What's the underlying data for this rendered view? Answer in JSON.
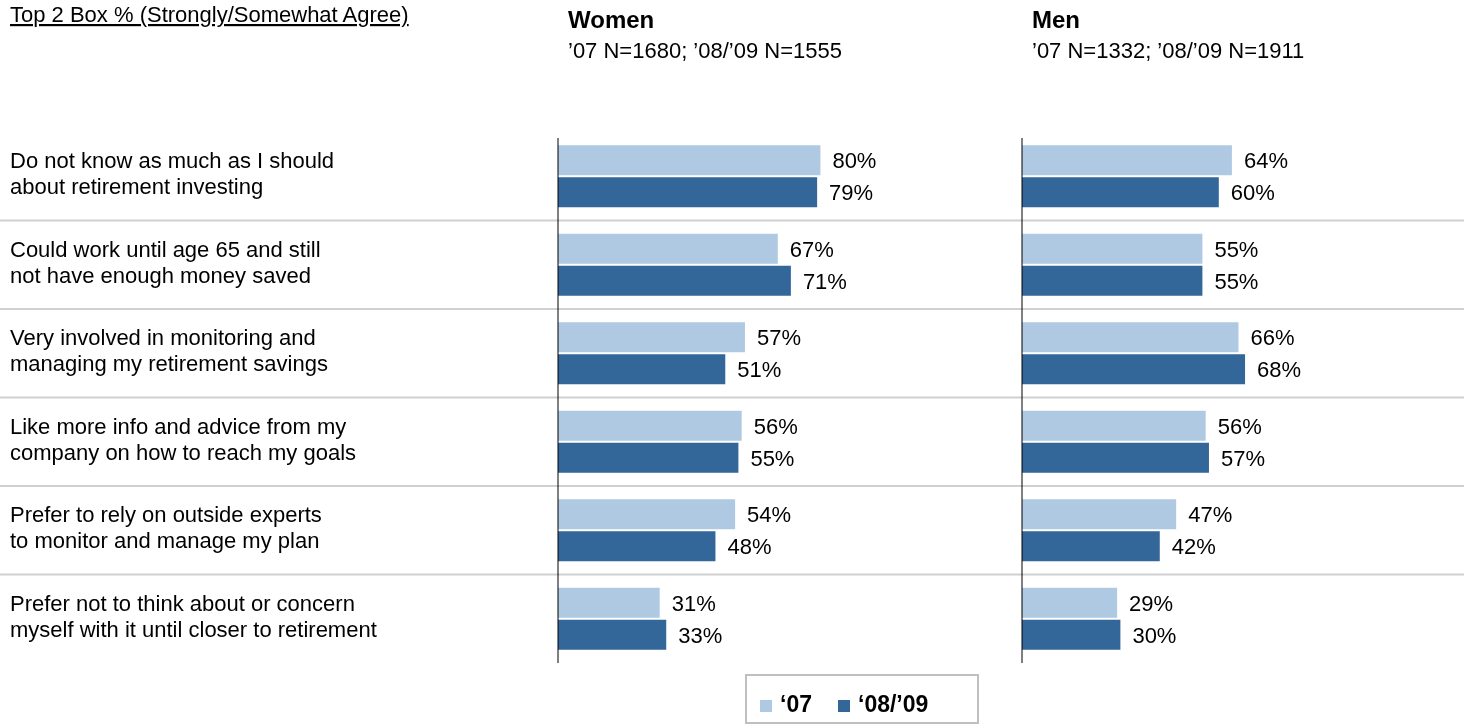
{
  "chart_data": [
    {
      "type": "bar",
      "orientation": "horizontal",
      "title": "Women",
      "subtitle": "’07 N=1680; ’08/’09 N=1555",
      "annotations": [
        "Top 2 Box % (Strongly/Somewhat Agree)"
      ],
      "categories": [
        "Do not know as much as I should\nabout retirement investing",
        "Could work until age 65 and still\nnot have enough money saved",
        "Very involved in monitoring and\nmanaging my retirement savings",
        "Like more info and advice from my\ncompany on how to reach my goals",
        "Prefer to rely on outside experts\nto monitor and manage my plan",
        "Prefer not to think about or concern\nmyself with it until closer to retirement"
      ],
      "series": [
        {
          "name": "‘07",
          "color": "#afc9e3",
          "values": [
            80,
            67,
            57,
            56,
            54,
            31
          ],
          "value_labels": [
            "80%",
            "67%",
            "57%",
            "56%",
            "54%",
            "31%"
          ]
        },
        {
          "name": "‘08/’09",
          "color": "#336699",
          "values": [
            79,
            71,
            51,
            55,
            48,
            33
          ],
          "value_labels": [
            "79%",
            "71%",
            "51%",
            "55%",
            "48%",
            "33%"
          ]
        }
      ],
      "grid": true,
      "legend": "bottom"
    },
    {
      "type": "bar",
      "orientation": "horizontal",
      "title": "Men",
      "subtitle": "’07 N=1332; ’08/’09 N=1911",
      "categories": [
        null,
        null,
        null,
        null,
        null,
        null
      ],
      "series": [
        {
          "color": "#afc9e3",
          "values": [
            64,
            55,
            66,
            56,
            47,
            29
          ],
          "value_labels": [
            "64%",
            "55%",
            "66%",
            "56%",
            "47%",
            "29%"
          ]
        },
        {
          "color": "#336699",
          "values": [
            60,
            55,
            68,
            57,
            42,
            30
          ],
          "value_labels": [
            "60%",
            "55%",
            "68%",
            "57%",
            "42%",
            "30%"
          ]
        }
      ],
      "grid": true
    }
  ]
}
